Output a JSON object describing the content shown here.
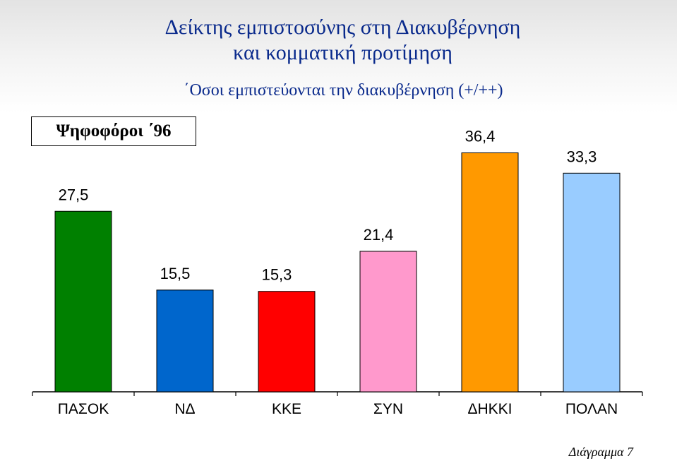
{
  "header": {
    "title_line1": "Δείκτης εμπιστοσύνης στη Διακυβέρνηση",
    "title_line2": "και κομματική προτίμηση",
    "subtitle": "΄Οσοι εμπιστεύονται την διακυβέρνηση (+/++)"
  },
  "legend_box": {
    "label": "Ψηφοφόροι ΄96"
  },
  "caption": "Διάγραμμα 7",
  "chart_data": {
    "type": "bar",
    "categories": [
      "ΠΑΣΟΚ",
      "ΝΔ",
      "ΚΚΕ",
      "ΣΥΝ",
      "ΔΗΚΚΙ",
      "ΠΟΛΑΝ"
    ],
    "values": [
      27.5,
      15.5,
      15.3,
      21.4,
      36.4,
      33.3
    ],
    "value_labels": [
      "27,5",
      "15,5",
      "15,3",
      "21,4",
      "36,4",
      "33,3"
    ],
    "colors": [
      "#008000",
      "#0066cc",
      "#ff0000",
      "#ff99cc",
      "#ff9900",
      "#99ccff"
    ],
    "ylim": [
      0,
      40
    ],
    "grid": false,
    "xlabel": "",
    "ylabel": ""
  }
}
